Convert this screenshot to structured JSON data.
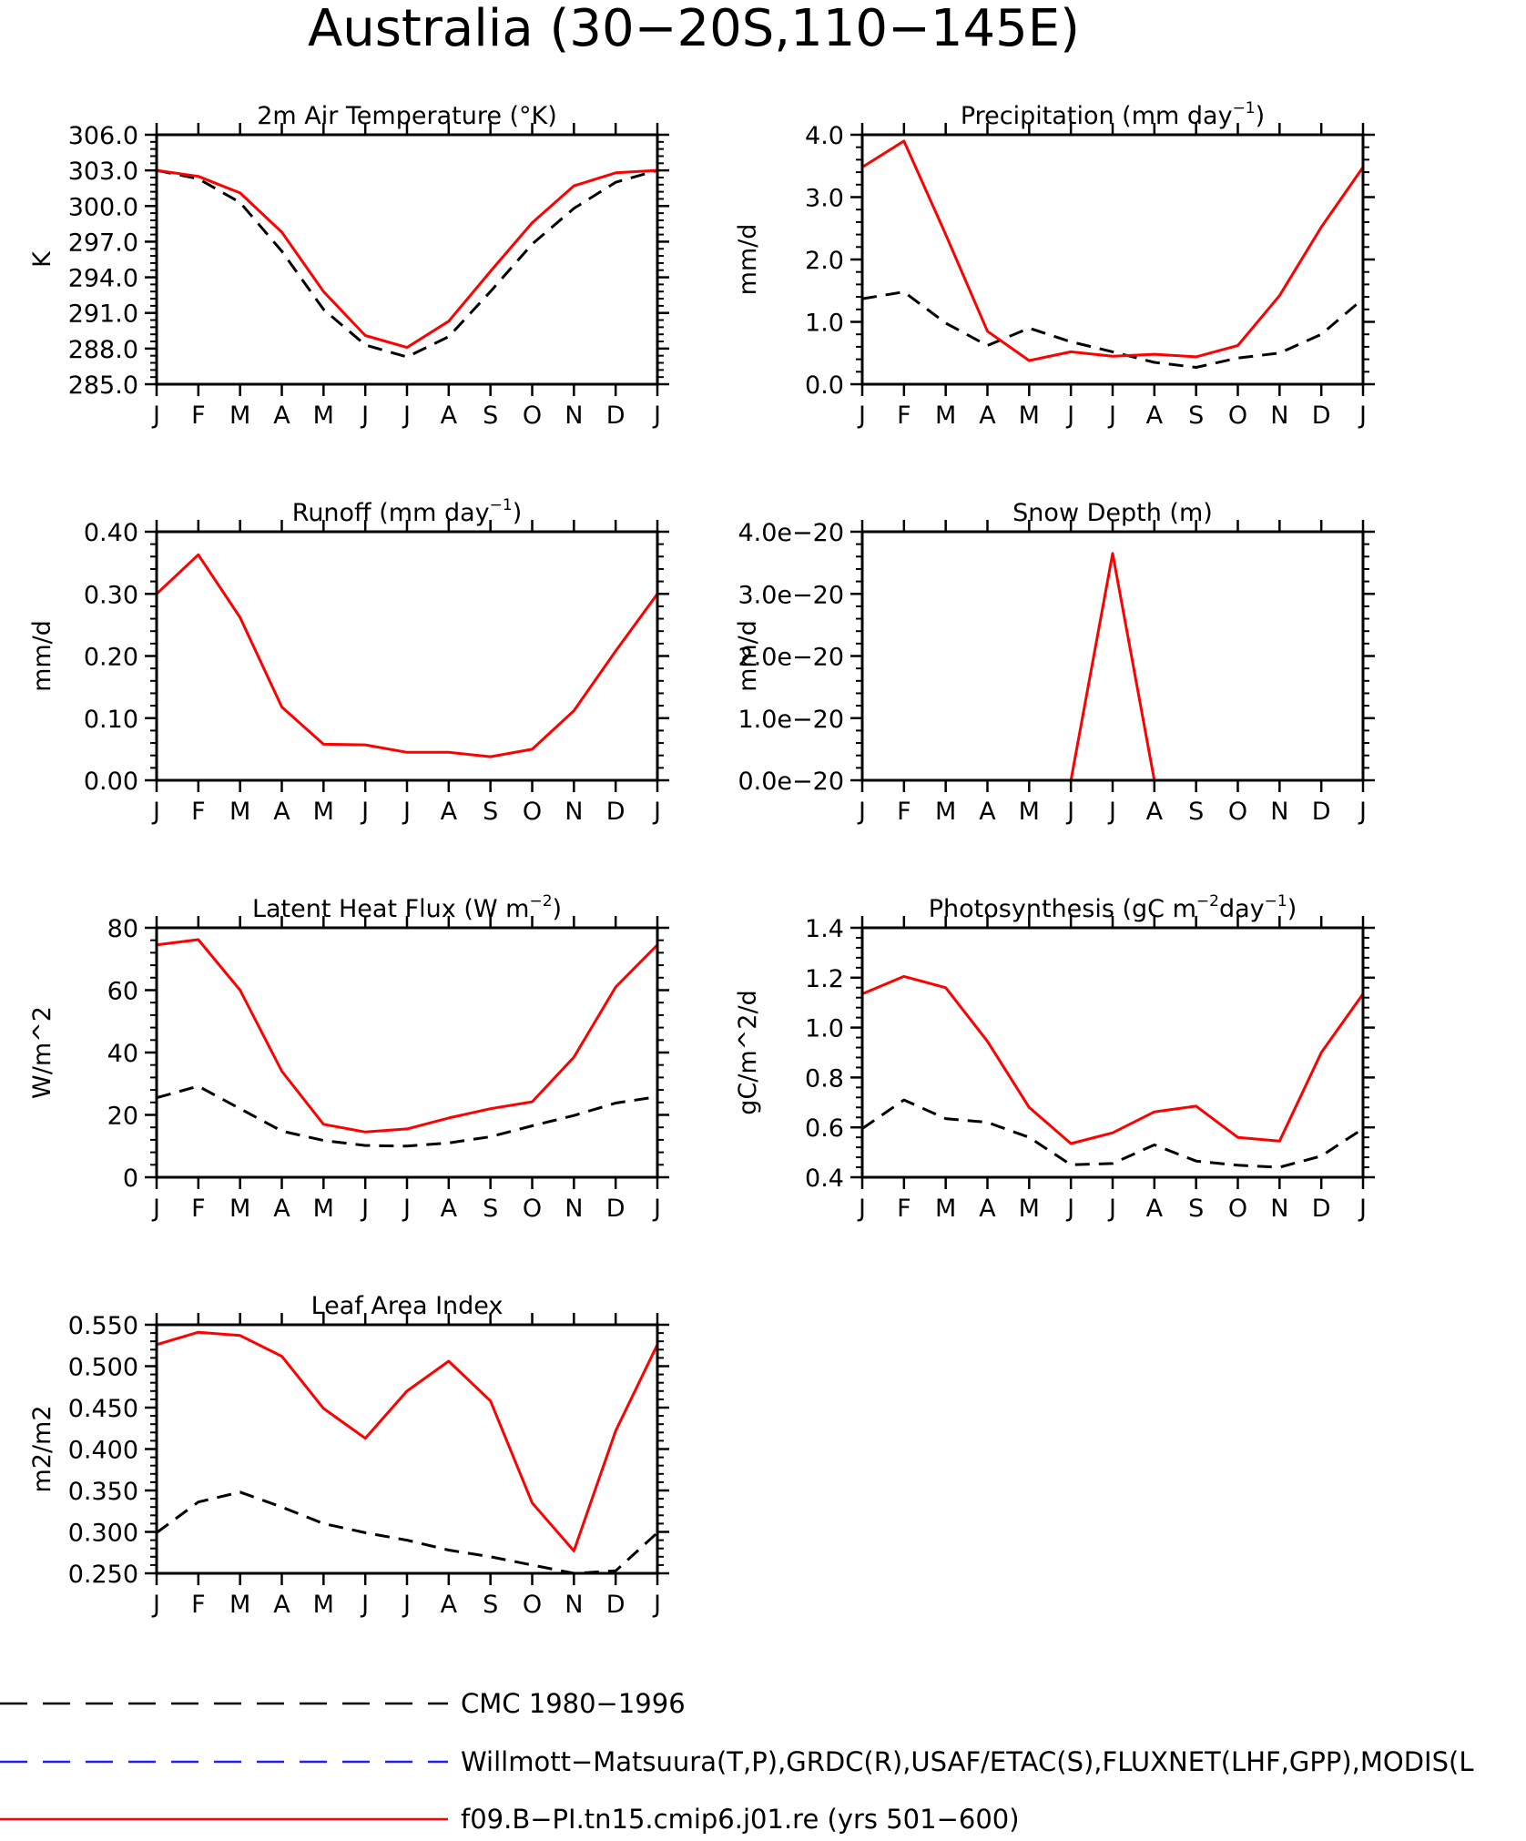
{
  "figure": {
    "title": "Australia (30−20S,110−145E)",
    "months": [
      "J",
      "F",
      "M",
      "A",
      "M",
      "J",
      "J",
      "A",
      "S",
      "O",
      "N",
      "D",
      "J"
    ]
  },
  "legend": {
    "items": [
      {
        "label": "CMC 1980−1996",
        "color": "#000000",
        "style": "dashed"
      },
      {
        "label": "Willmott−Matsuura(T,P),GRDC(R),USAF/ETAC(S),FLUXNET(LHF,GPP),MODIS(L",
        "color": "#2020ff",
        "style": "dashed"
      },
      {
        "label": "f09.B−PI.tn15.cmip6.j01.re (yrs 501−600)",
        "color": "#ff0000",
        "style": "solid"
      }
    ]
  },
  "colors": {
    "model": "#ff0000",
    "obs": "#000000",
    "obs2": "#2020ff"
  },
  "chart_data": [
    {
      "type": "line",
      "title": "2m Air Temperature (°K)",
      "ylabel": "K",
      "ylim": [
        285,
        306
      ],
      "yticks": [
        285,
        288,
        291,
        294,
        297,
        300,
        303,
        306
      ],
      "ytick_labels": [
        "285.0",
        "288.0",
        "291.0",
        "294.0",
        "297.0",
        "300.0",
        "303.0",
        "306.0"
      ],
      "x": [
        "J",
        "F",
        "M",
        "A",
        "M",
        "J",
        "J",
        "A",
        "S",
        "O",
        "N",
        "D",
        "J"
      ],
      "series": [
        {
          "style": "dashed",
          "color": "#000000",
          "values": [
            303.0,
            302.3,
            300.3,
            296.2,
            291.3,
            288.3,
            287.3,
            289.0,
            292.8,
            296.8,
            299.8,
            302.0,
            303.0
          ]
        },
        {
          "style": "solid",
          "color": "#ff0000",
          "values": [
            303.0,
            302.5,
            301.1,
            297.8,
            292.8,
            289.1,
            288.1,
            290.3,
            294.5,
            298.6,
            301.7,
            302.8,
            303.0
          ]
        }
      ]
    },
    {
      "type": "line",
      "title": "Precipitation (mm day",
      "title_sup": "−1",
      "title_end": ")",
      "ylabel": "mm/d",
      "ylim": [
        0,
        4
      ],
      "yticks": [
        0,
        1,
        2,
        3,
        4
      ],
      "ytick_labels": [
        "0.0",
        "1.0",
        "2.0",
        "3.0",
        "4.0"
      ],
      "x": [
        "J",
        "F",
        "M",
        "A",
        "M",
        "J",
        "J",
        "A",
        "S",
        "O",
        "N",
        "D",
        "J"
      ],
      "series": [
        {
          "style": "dashed",
          "color": "#000000",
          "values": [
            1.37,
            1.48,
            0.98,
            0.62,
            0.9,
            0.68,
            0.52,
            0.35,
            0.27,
            0.42,
            0.5,
            0.8,
            1.37
          ]
        },
        {
          "style": "solid",
          "color": "#ff0000",
          "values": [
            3.48,
            3.9,
            2.4,
            0.85,
            0.38,
            0.52,
            0.45,
            0.48,
            0.44,
            0.62,
            1.42,
            2.52,
            3.48
          ]
        }
      ]
    },
    {
      "type": "line",
      "title": "Runoff (mm day",
      "title_sup": "−1",
      "title_end": ")",
      "ylabel": "mm/d",
      "ylim": [
        0,
        0.4
      ],
      "yticks": [
        0,
        0.1,
        0.2,
        0.3,
        0.4
      ],
      "ytick_labels": [
        "0.00",
        "0.10",
        "0.20",
        "0.30",
        "0.40"
      ],
      "x": [
        "J",
        "F",
        "M",
        "A",
        "M",
        "J",
        "J",
        "A",
        "S",
        "O",
        "N",
        "D",
        "J"
      ],
      "series": [
        {
          "style": "dashed",
          "color": "#000000",
          "values": [
            0,
            0,
            0,
            0,
            0,
            0,
            0,
            0,
            0,
            0,
            0,
            0,
            0
          ]
        },
        {
          "style": "solid",
          "color": "#ff0000",
          "values": [
            0.3,
            0.363,
            0.262,
            0.118,
            0.058,
            0.057,
            0.045,
            0.045,
            0.038,
            0.05,
            0.112,
            0.208,
            0.3
          ]
        }
      ]
    },
    {
      "type": "line",
      "title": "Snow Depth (m)",
      "ylabel": "mm/d",
      "ylim": [
        0,
        4e-20
      ],
      "yticks": [
        0,
        1e-20,
        2e-20,
        3e-20,
        4e-20
      ],
      "ytick_labels": [
        "0.0e−20",
        "1.0e−20",
        "2.0e−20",
        "3.0e−20",
        "4.0e−20"
      ],
      "x": [
        "J",
        "F",
        "M",
        "A",
        "M",
        "J",
        "J",
        "A",
        "S",
        "O",
        "N",
        "D",
        "J"
      ],
      "series": [
        {
          "style": "dashed",
          "color": "#000000",
          "values": [
            0,
            0,
            0,
            0,
            0,
            0,
            0,
            0,
            0,
            0,
            0,
            0,
            0
          ]
        },
        {
          "style": "solid",
          "color": "#ff0000",
          "values": [
            0,
            0,
            0,
            0,
            0,
            0,
            3.65e-20,
            0,
            0,
            0,
            0,
            0,
            0
          ]
        }
      ]
    },
    {
      "type": "line",
      "title": "Latent Heat Flux (W m",
      "title_sup": "−2",
      "title_end": ")",
      "ylabel": "W/m^2",
      "ylim": [
        0,
        80
      ],
      "yticks": [
        0,
        20,
        40,
        60,
        80
      ],
      "ytick_labels": [
        "0",
        "20",
        "40",
        "60",
        "80"
      ],
      "x": [
        "J",
        "F",
        "M",
        "A",
        "M",
        "J",
        "J",
        "A",
        "S",
        "O",
        "N",
        "D",
        "J"
      ],
      "series": [
        {
          "style": "dashed",
          "color": "#000000",
          "values": [
            25.5,
            29.2,
            22.0,
            14.8,
            11.8,
            10.2,
            10.0,
            11.0,
            13.0,
            16.5,
            19.8,
            23.8,
            25.8
          ]
        },
        {
          "style": "solid",
          "color": "#ff0000",
          "values": [
            74.5,
            76.2,
            60.0,
            34.0,
            17.0,
            14.5,
            15.5,
            19.0,
            22.0,
            24.2,
            38.5,
            61.0,
            74.5
          ]
        }
      ]
    },
    {
      "type": "line",
      "title": "Photosynthesis (gC m",
      "title_sup": "−2",
      "title_mid": "day",
      "title_sup2": "−1",
      "title_end": ")",
      "ylabel": "gC/m^2/d",
      "ylim": [
        0.4,
        1.4
      ],
      "yticks": [
        0.4,
        0.6,
        0.8,
        1.0,
        1.2,
        1.4
      ],
      "ytick_labels": [
        "0.4",
        "0.6",
        "0.8",
        "1.0",
        "1.2",
        "1.4"
      ],
      "x": [
        "J",
        "F",
        "M",
        "A",
        "M",
        "J",
        "J",
        "A",
        "S",
        "O",
        "N",
        "D",
        "J"
      ],
      "series": [
        {
          "style": "dashed",
          "color": "#000000",
          "values": [
            0.595,
            0.71,
            0.635,
            0.62,
            0.56,
            0.45,
            0.455,
            0.53,
            0.465,
            0.448,
            0.44,
            0.485,
            0.595
          ]
        },
        {
          "style": "solid",
          "color": "#ff0000",
          "values": [
            1.135,
            1.205,
            1.16,
            0.945,
            0.68,
            0.535,
            0.578,
            0.662,
            0.685,
            0.56,
            0.545,
            0.9,
            1.135
          ]
        }
      ]
    },
    {
      "type": "line",
      "title": "Leaf Area Index",
      "ylabel": "m2/m2",
      "ylim": [
        0.25,
        0.55
      ],
      "yticks": [
        0.25,
        0.3,
        0.35,
        0.4,
        0.45,
        0.5,
        0.55
      ],
      "ytick_labels": [
        "0.250",
        "0.300",
        "0.350",
        "0.400",
        "0.450",
        "0.500",
        "0.550"
      ],
      "x": [
        "J",
        "F",
        "M",
        "A",
        "M",
        "J",
        "J",
        "A",
        "S",
        "O",
        "N",
        "D",
        "J"
      ],
      "series": [
        {
          "style": "dashed",
          "color": "#000000",
          "values": [
            0.299,
            0.336,
            0.348,
            0.33,
            0.31,
            0.299,
            0.29,
            0.278,
            0.27,
            0.26,
            0.25,
            0.253,
            0.299
          ]
        },
        {
          "style": "solid",
          "color": "#ff0000",
          "values": [
            0.526,
            0.541,
            0.537,
            0.512,
            0.449,
            0.413,
            0.47,
            0.506,
            0.458,
            0.335,
            0.277,
            0.422,
            0.526
          ]
        }
      ]
    }
  ]
}
